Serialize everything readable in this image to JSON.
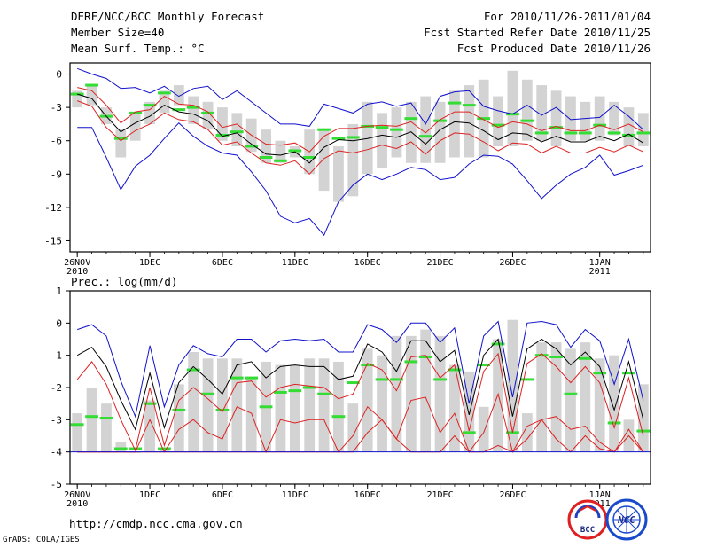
{
  "header": {
    "title": "DERF/NCC/BCC Monthly Forecast",
    "member": "Member Size=40",
    "variable": "Mean Surf. Temp.: °C",
    "period": "For 2010/11/26-2011/01/04",
    "start": "Fcst Started Refer Date 2010/11/25",
    "produced": "Fcst Produced Date 2010/11/26"
  },
  "footer": {
    "url": "http://cmdp.ncc.cma.gov.cn",
    "grads": "GrADS: COLA/IGES",
    "logo_bcc": "BCC",
    "logo_ncc": "NCC"
  },
  "colors": {
    "bar": "#d3d3d3",
    "median": "#33dd33",
    "mean": "#000000",
    "std": "#dd2222",
    "extreme": "#1111cc"
  },
  "chart_data": [
    {
      "name": "temperature",
      "type": "box",
      "title": "Mean Surf. Temp.: °C",
      "ylim": [
        -16,
        1
      ],
      "yticks": [
        0,
        -3,
        -6,
        -9,
        -12,
        -15
      ],
      "ytick_labels": [
        "0",
        "-3",
        "-6",
        "-9",
        "-12",
        "-15"
      ],
      "xticks": [
        {
          "i": 0,
          "label": "26NOV",
          "sub": "2010"
        },
        {
          "i": 5,
          "label": "1DEC"
        },
        {
          "i": 10,
          "label": "6DEC"
        },
        {
          "i": 15,
          "label": "11DEC"
        },
        {
          "i": 20,
          "label": "16DEC"
        },
        {
          "i": 25,
          "label": "21DEC"
        },
        {
          "i": 30,
          "label": "26DEC"
        },
        {
          "i": 36,
          "label": "1JAN",
          "sub": "2011"
        }
      ],
      "days": 40,
      "bar_low": [
        -3.0,
        -2.8,
        -4.5,
        -7.5,
        -6.0,
        -4.5,
        -3.5,
        -2.8,
        -4.5,
        -5.0,
        -6.0,
        -6.5,
        -7.0,
        -8.0,
        -8.0,
        -7.5,
        -9.0,
        -10.5,
        -11.5,
        -11.0,
        -9.0,
        -8.5,
        -7.5,
        -8.0,
        -8.0,
        -8.0,
        -7.5,
        -7.5,
        -7.5,
        -6.5,
        -6.5,
        -6.0,
        -6.0,
        -6.5,
        -6.0,
        -6.0,
        -6.0,
        -5.5,
        -6.5,
        -6.5
      ],
      "bar_high": [
        -1.5,
        -1.0,
        -3.0,
        -5.0,
        -3.5,
        -2.5,
        -1.5,
        -1.0,
        -2.0,
        -2.5,
        -3.0,
        -3.5,
        -4.0,
        -5.0,
        -6.0,
        -6.5,
        -5.0,
        -5.0,
        -6.5,
        -4.5,
        -2.5,
        -3.5,
        -3.0,
        -2.5,
        -2.0,
        -2.5,
        -1.5,
        -1.0,
        -0.5,
        -2.0,
        0.3,
        -0.5,
        -1.0,
        -1.5,
        -2.0,
        -2.5,
        -2.0,
        -2.5,
        -3.0,
        -3.5
      ],
      "median": [
        -1.8,
        -1.0,
        -3.8,
        -5.8,
        -3.5,
        -2.8,
        -1.7,
        -3.2,
        -3.0,
        -3.5,
        -5.5,
        -5.2,
        -6.5,
        -7.5,
        -7.8,
        -6.9,
        -7.5,
        -5.0,
        -5.8,
        -5.7,
        -4.7,
        -4.8,
        -5.0,
        -4.0,
        -5.6,
        -4.2,
        -2.6,
        -2.8,
        -4.0,
        -4.6,
        -3.6,
        -4.2,
        -5.3,
        -4.8,
        -5.3,
        -5.3,
        -4.6,
        -5.3,
        -5.5,
        -5.3
      ],
      "std_upper": [
        -1.2,
        -1.5,
        -2.8,
        -4.4,
        -3.4,
        -3.2,
        -2.0,
        -2.7,
        -2.8,
        -3.4,
        -4.8,
        -4.5,
        -5.5,
        -6.3,
        -6.4,
        -6.2,
        -7.0,
        -5.6,
        -4.9,
        -4.9,
        -4.7,
        -4.6,
        -4.7,
        -4.3,
        -5.3,
        -4.1,
        -3.4,
        -3.4,
        -4.1,
        -4.8,
        -4.3,
        -4.5,
        -5.1,
        -4.7,
        -5.1,
        -5.1,
        -4.6,
        -5.0,
        -4.5,
        -5.2
      ],
      "mean": [
        -1.8,
        -2.2,
        -3.8,
        -5.2,
        -4.4,
        -3.8,
        -2.8,
        -3.4,
        -3.6,
        -4.2,
        -5.6,
        -5.3,
        -6.3,
        -7.2,
        -7.3,
        -7.0,
        -8.0,
        -6.6,
        -5.9,
        -6.0,
        -5.8,
        -5.5,
        -5.7,
        -5.2,
        -6.3,
        -5.0,
        -4.3,
        -4.4,
        -5.1,
        -5.9,
        -5.3,
        -5.4,
        -6.1,
        -5.6,
        -6.1,
        -6.1,
        -5.6,
        -6.0,
        -5.4,
        -6.2
      ],
      "std_lower": [
        -2.4,
        -2.9,
        -4.8,
        -6.0,
        -5.1,
        -4.5,
        -3.5,
        -4.1,
        -4.3,
        -5.0,
        -6.4,
        -6.1,
        -7.1,
        -8.0,
        -8.2,
        -7.8,
        -9.0,
        -7.6,
        -6.9,
        -7.1,
        -6.8,
        -6.4,
        -6.7,
        -6.1,
        -7.2,
        -6.0,
        -5.3,
        -5.4,
        -6.1,
        -6.9,
        -6.2,
        -6.3,
        -7.1,
        -6.5,
        -7.1,
        -7.1,
        -6.6,
        -7.0,
        -6.4,
        -7.0
      ],
      "max": [
        0.5,
        0.0,
        -0.4,
        -1.3,
        -1.2,
        -1.7,
        -1.1,
        -2.0,
        -1.3,
        -1.1,
        -2.3,
        -1.5,
        -2.5,
        -3.5,
        -4.5,
        -4.5,
        -4.7,
        -2.7,
        -3.1,
        -3.5,
        -2.7,
        -2.5,
        -2.9,
        -2.6,
        -4.5,
        -2.0,
        -1.6,
        -1.5,
        -2.9,
        -3.3,
        -3.6,
        -2.8,
        -3.7,
        -3.0,
        -4.1,
        -4.0,
        -3.9,
        -2.8,
        -3.8,
        -5.0
      ],
      "min": [
        -4.8,
        -4.8,
        -7.5,
        -10.4,
        -8.3,
        -7.3,
        -5.8,
        -4.4,
        -5.6,
        -6.5,
        -7.1,
        -7.3,
        -8.8,
        -10.5,
        -12.8,
        -13.4,
        -13.0,
        -14.5,
        -11.5,
        -10.0,
        -9.0,
        -9.5,
        -9.0,
        -8.4,
        -8.6,
        -9.5,
        -9.3,
        -8.1,
        -7.3,
        -7.4,
        -8.1,
        -9.6,
        -11.2,
        -10.0,
        -9.0,
        -8.4,
        -7.3,
        -9.1,
        -8.7,
        -8.2
      ]
    },
    {
      "name": "precipitation",
      "type": "box",
      "title": "Prec.: log(mm/d)",
      "ylim": [
        -5,
        1
      ],
      "yticks": [
        1,
        0,
        -1,
        -2,
        -3,
        -4,
        -5
      ],
      "ytick_labels": [
        "1",
        "0",
        "-1",
        "-2",
        "-3",
        "-4",
        "-5"
      ],
      "xticks": [
        {
          "i": 0,
          "label": "26NOV",
          "sub": "2010"
        },
        {
          "i": 5,
          "label": "1DEC"
        },
        {
          "i": 10,
          "label": "6DEC"
        },
        {
          "i": 15,
          "label": "11DEC"
        },
        {
          "i": 20,
          "label": "16DEC"
        },
        {
          "i": 25,
          "label": "21DEC"
        },
        {
          "i": 30,
          "label": "26DEC"
        },
        {
          "i": 36,
          "label": "1JAN",
          "sub": "2011"
        }
      ],
      "days": 40,
      "floor": -4.0,
      "bar_high": [
        -2.8,
        -2.0,
        -2.5,
        -3.7,
        -4.0,
        -2.4,
        -3.9,
        -1.9,
        -0.9,
        -1.1,
        -1.1,
        -1.1,
        -1.7,
        -1.2,
        -1.3,
        -1.3,
        -1.1,
        -1.1,
        -1.2,
        -2.5,
        -0.8,
        -1.0,
        -0.4,
        -0.4,
        -0.2,
        -0.4,
        -1.3,
        -1.5,
        -2.6,
        -0.5,
        0.1,
        -2.8,
        -0.6,
        -0.6,
        -0.8,
        -0.6,
        -1.1,
        -1.0,
        -3.0,
        -1.9
      ],
      "median": [
        -3.15,
        -2.9,
        -2.95,
        -3.9,
        -3.9,
        -2.5,
        -3.9,
        -2.7,
        -1.45,
        -2.2,
        -2.7,
        -1.7,
        -1.7,
        -2.6,
        -2.15,
        -2.1,
        -2.0,
        -2.2,
        -2.9,
        -1.85,
        -1.3,
        -1.75,
        -1.75,
        -1.2,
        -1.05,
        -1.75,
        -1.45,
        -3.4,
        -1.3,
        -0.65,
        -3.4,
        -1.75,
        -1.0,
        -1.05,
        -2.2,
        -1.1,
        -1.55,
        -3.1,
        -1.55,
        -3.35
      ],
      "mean": [
        -1.0,
        -0.75,
        -1.35,
        -2.4,
        -3.3,
        -1.55,
        -3.25,
        -1.85,
        -1.35,
        -1.75,
        -2.2,
        -1.3,
        -1.2,
        -1.7,
        -1.35,
        -1.3,
        -1.35,
        -1.35,
        -1.75,
        -1.65,
        -0.65,
        -0.9,
        -1.5,
        -0.55,
        -0.55,
        -1.2,
        -0.85,
        -2.85,
        -1.0,
        -0.5,
        -2.9,
        -0.8,
        -0.5,
        -0.8,
        -1.3,
        -0.9,
        -1.35,
        -2.7,
        -1.2,
        -3.0
      ],
      "std_upper": [
        -1.75,
        -1.2,
        -1.9,
        -3.0,
        -3.95,
        -2.0,
        -3.8,
        -2.4,
        -2.0,
        -2.35,
        -2.75,
        -1.85,
        -1.8,
        -2.3,
        -2.0,
        -1.9,
        -1.95,
        -2.0,
        -2.35,
        -2.2,
        -1.25,
        -1.45,
        -2.1,
        -1.05,
        -1.0,
        -1.7,
        -1.3,
        -3.35,
        -1.5,
        -0.95,
        -3.4,
        -1.25,
        -0.95,
        -1.35,
        -1.85,
        -1.35,
        -1.85,
        -3.25,
        -1.7,
        -3.5
      ],
      "std_lower": [
        -4.0,
        -4.0,
        -4.0,
        -4.0,
        -4.0,
        -3.0,
        -4.0,
        -3.3,
        -3.0,
        -3.4,
        -3.6,
        -2.6,
        -2.8,
        -4.0,
        -3.0,
        -3.1,
        -3.0,
        -3.0,
        -4.0,
        -3.5,
        -2.6,
        -3.0,
        -3.6,
        -2.4,
        -2.3,
        -3.4,
        -2.8,
        -4.0,
        -3.4,
        -2.2,
        -4.0,
        -3.2,
        -3.0,
        -2.9,
        -3.3,
        -3.2,
        -3.7,
        -4.0,
        -3.3,
        -4.0
      ],
      "extra_lower": [
        -4.0,
        -4.0,
        -4.0,
        -4.0,
        -4.0,
        -4.0,
        -4.0,
        -4.0,
        -4.0,
        -4.0,
        -4.0,
        -4.0,
        -4.0,
        -4.0,
        -4.0,
        -4.0,
        -4.0,
        -4.0,
        -4.0,
        -4.0,
        -3.4,
        -3.0,
        -3.6,
        -4.0,
        -4.0,
        -4.0,
        -3.5,
        -4.0,
        -4.0,
        -3.8,
        -4.0,
        -3.6,
        -3.0,
        -3.6,
        -4.0,
        -3.5,
        -3.9,
        -4.0,
        -3.5,
        -4.0
      ],
      "max": [
        -0.2,
        -0.05,
        -0.4,
        -1.8,
        -2.9,
        -0.7,
        -2.6,
        -1.3,
        -0.7,
        -0.95,
        -1.05,
        -0.5,
        -0.5,
        -0.9,
        -0.55,
        -0.5,
        -0.55,
        -0.5,
        -0.9,
        -0.9,
        -0.05,
        -0.2,
        -0.6,
        0.0,
        0.0,
        -0.6,
        -0.15,
        -2.5,
        -0.4,
        0.05,
        -2.3,
        0.0,
        0.05,
        -0.05,
        -0.75,
        -0.2,
        -0.55,
        -1.9,
        -0.5,
        -2.4
      ]
    }
  ]
}
